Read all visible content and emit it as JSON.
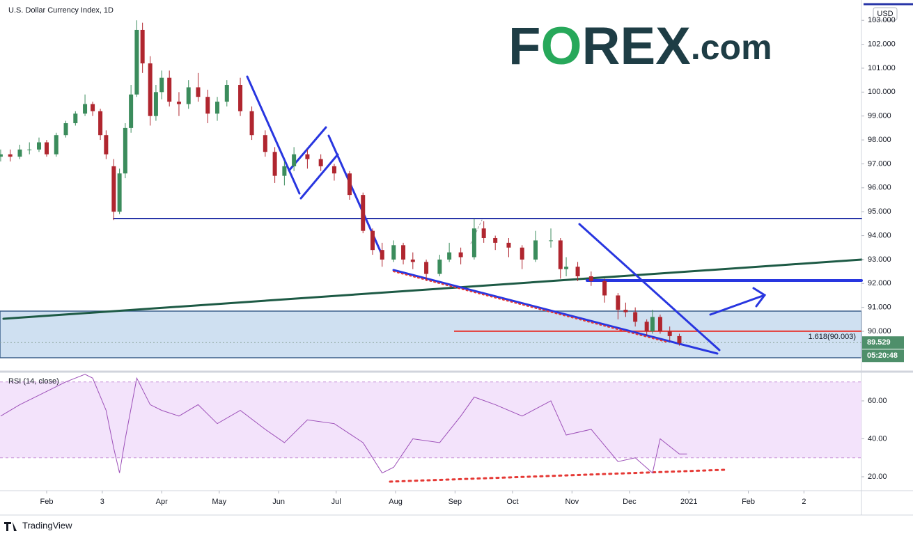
{
  "chart_data": [
    {
      "type": "candlestick",
      "title": "U.S. Dollar Currency Index, 1D",
      "up_color": "#3b8c5c",
      "down_color": "#b0262f",
      "x": [
        7,
        12,
        17,
        22,
        27,
        31,
        36,
        41,
        46,
        51,
        55,
        59,
        62,
        66,
        69,
        72,
        75,
        78,
        81,
        85,
        88,
        91,
        95,
        100,
        105,
        110,
        115,
        120,
        125,
        132,
        138,
        145,
        150,
        155,
        160,
        167,
        174,
        181,
        189,
        196,
        201,
        206,
        212,
        217,
        222,
        229,
        236,
        241,
        247,
        254,
        259,
        265,
        272,
        279,
        286,
        294,
        299,
        302,
        308,
        315,
        322,
        329,
        333,
        338,
        344,
        347,
        351,
        356,
        361
      ],
      "open": [
        97.3,
        97.4,
        97.3,
        97.6,
        97.6,
        97.9,
        97.4,
        98.2,
        98.7,
        99.1,
        99.5,
        99.2,
        98.2,
        96.9,
        95.0,
        96.6,
        98.5,
        99.9,
        102.6,
        101.2,
        99.0,
        100.0,
        100.6,
        99.6,
        99.5,
        100.2,
        99.8,
        99.1,
        99.6,
        100.3,
        99.2,
        98.2,
        97.5,
        96.5,
        96.9,
        97.4,
        97.2,
        96.9,
        96.6,
        95.7,
        94.2,
        93.4,
        93.0,
        93.6,
        93.0,
        92.9,
        92.4,
        93.0,
        93.3,
        93.1,
        94.3,
        93.9,
        93.7,
        93.5,
        93.0,
        93.8,
        93.8,
        92.6,
        92.7,
        92.3,
        92.1,
        91.5,
        90.9,
        90.8,
        90.4,
        90.0,
        90.6,
        90.0,
        89.8
      ],
      "high": [
        97.6,
        97.6,
        97.8,
        97.9,
        98.1,
        98.0,
        98.3,
        98.8,
        99.2,
        99.9,
        99.6,
        99.3,
        98.4,
        97.2,
        96.8,
        98.7,
        100.3,
        103.0,
        102.9,
        101.5,
        100.3,
        100.9,
        100.9,
        100.0,
        100.5,
        100.8,
        100.1,
        99.8,
        100.5,
        100.6,
        99.4,
        98.4,
        97.7,
        97.1,
        97.7,
        97.6,
        97.4,
        97.0,
        96.7,
        95.8,
        94.3,
        93.7,
        93.8,
        93.7,
        93.3,
        93.0,
        93.2,
        93.7,
        93.5,
        94.7,
        94.6,
        94.0,
        93.9,
        93.6,
        94.2,
        94.3,
        93.9,
        93.1,
        92.9,
        92.5,
        92.2,
        91.6,
        91.2,
        91.0,
        90.5,
        90.9,
        90.7,
        90.2,
        89.9
      ],
      "low": [
        97.1,
        97.1,
        97.2,
        97.4,
        97.5,
        97.3,
        97.3,
        98.1,
        98.6,
        99.0,
        99.0,
        98.0,
        97.2,
        94.65,
        94.9,
        96.4,
        98.3,
        99.8,
        100.8,
        98.6,
        98.8,
        99.7,
        99.4,
        99.0,
        99.3,
        99.6,
        98.7,
        98.8,
        99.4,
        99.0,
        98.0,
        97.3,
        96.2,
        96.1,
        96.7,
        96.8,
        96.7,
        96.3,
        95.5,
        94.1,
        93.2,
        92.7,
        92.9,
        92.8,
        92.6,
        92.1,
        92.3,
        92.9,
        92.8,
        93.0,
        93.7,
        93.4,
        93.1,
        92.6,
        92.9,
        93.5,
        92.2,
        92.3,
        92.1,
        91.9,
        91.2,
        90.5,
        90.6,
        90.2,
        89.8,
        89.9,
        89.9,
        89.6,
        89.4
      ],
      "close": [
        97.4,
        97.3,
        97.6,
        97.6,
        97.9,
        97.4,
        98.2,
        98.7,
        99.1,
        99.5,
        99.2,
        98.2,
        97.4,
        95.0,
        96.6,
        98.5,
        99.9,
        102.6,
        101.2,
        99.0,
        100.0,
        100.6,
        99.6,
        99.5,
        100.2,
        99.8,
        99.1,
        99.6,
        100.3,
        99.2,
        98.2,
        97.5,
        96.5,
        96.9,
        97.4,
        97.2,
        96.9,
        96.6,
        95.7,
        94.2,
        93.4,
        93.0,
        93.6,
        93.0,
        92.9,
        92.4,
        93.0,
        93.3,
        93.1,
        94.3,
        93.9,
        93.7,
        93.5,
        93.0,
        93.8,
        93.8,
        92.6,
        92.7,
        92.3,
        92.1,
        91.5,
        90.9,
        90.8,
        90.4,
        90.0,
        90.6,
        90.0,
        89.8,
        89.5
      ],
      "xlim": [
        6.66,
        456
      ],
      "xticks": [
        {
          "value": 31,
          "label": "Feb"
        },
        {
          "value": 60,
          "label": "3"
        },
        {
          "value": 91,
          "label": "Apr"
        },
        {
          "value": 121,
          "label": "May"
        },
        {
          "value": 152,
          "label": "Jun"
        },
        {
          "value": 182,
          "label": "Jul"
        },
        {
          "value": 213,
          "label": "Aug"
        },
        {
          "value": 244,
          "label": "Sep"
        },
        {
          "value": 274,
          "label": "Oct"
        },
        {
          "value": 305,
          "label": "Nov"
        },
        {
          "value": 335,
          "label": "Dec"
        },
        {
          "value": 366,
          "label": "2021"
        },
        {
          "value": 397,
          "label": "Feb"
        },
        {
          "value": 426,
          "label": "2"
        }
      ],
      "ylim": [
        88.43,
        103.85
      ],
      "yticks": [
        {
          "value": 90,
          "label": "90.000"
        },
        {
          "value": 91,
          "label": "91.000"
        },
        {
          "value": 92,
          "label": "92.000"
        },
        {
          "value": 93,
          "label": "93.000"
        },
        {
          "value": 94,
          "label": "94.000"
        },
        {
          "value": 95,
          "label": "95.000"
        },
        {
          "value": 96,
          "label": "96.000"
        },
        {
          "value": 97,
          "label": "97.000"
        },
        {
          "value": 98,
          "label": "98.000"
        },
        {
          "value": 99,
          "label": "99.000"
        },
        {
          "value": 100,
          "label": "100.000"
        },
        {
          "value": 101,
          "label": "101.000"
        },
        {
          "value": 102,
          "label": "102.000"
        },
        {
          "value": 103,
          "label": "103.000"
        }
      ],
      "currency": "USD",
      "last_price": 89.529,
      "countdown": "05:20:48",
      "fib": {
        "value": 90.003,
        "label": "1.618(90.003)"
      },
      "grid": false
    },
    {
      "type": "line",
      "title": "RSI (14, close)",
      "color": "#9c4fb8",
      "x": [
        7,
        17,
        27,
        41,
        51,
        55,
        62,
        66,
        69,
        72,
        78,
        85,
        91,
        100,
        110,
        120,
        132,
        145,
        155,
        167,
        181,
        196,
        206,
        212,
        222,
        236,
        247,
        254,
        265,
        279,
        294,
        302,
        315,
        329,
        338,
        347,
        351,
        361,
        365
      ],
      "values": [
        52,
        58,
        63,
        70,
        74,
        72,
        55,
        35,
        22,
        40,
        72,
        58,
        55,
        52,
        58,
        48,
        55,
        45,
        38,
        50,
        48,
        38,
        22,
        25,
        40,
        38,
        52,
        62,
        58,
        52,
        60,
        42,
        45,
        28,
        30,
        22,
        40,
        32,
        32
      ],
      "xlim": [
        6.66,
        456
      ],
      "ylim": [
        12.66,
        73.2
      ],
      "yticks": [
        {
          "value": 20,
          "label": "20.00"
        },
        {
          "value": 40,
          "label": "40.00"
        },
        {
          "value": 60,
          "label": "60.00"
        }
      ],
      "bands": [
        30,
        70
      ]
    }
  ],
  "logo": [
    "F",
    "O",
    "REX",
    ".com"
  ],
  "footer": "TradingView"
}
